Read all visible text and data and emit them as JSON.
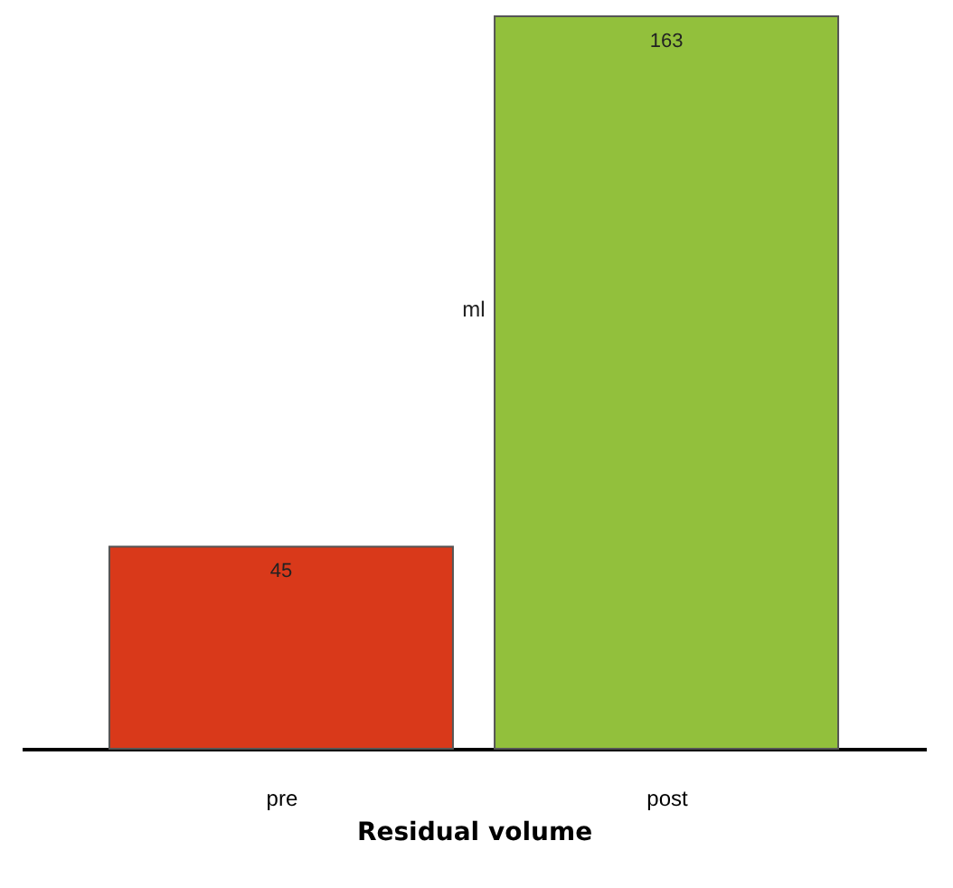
{
  "chart_data": {
    "type": "bar",
    "xlabel": "Residual volume",
    "ylabel": "ml",
    "categories": [
      "pre",
      "post"
    ],
    "series": [
      {
        "values": [
          45,
          163
        ],
        "colors": [
          "#d9391a",
          "#92c03c"
        ]
      }
    ],
    "data_labels": true,
    "grid": false
  }
}
